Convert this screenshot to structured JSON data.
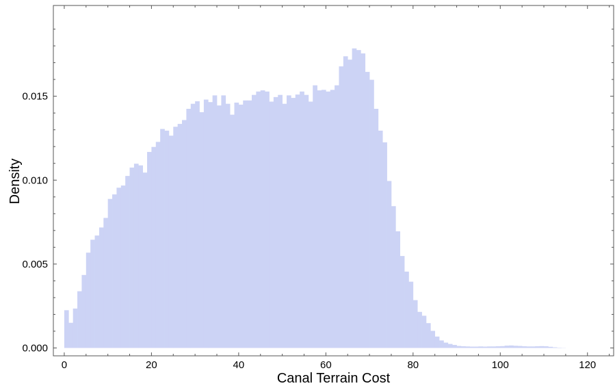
{
  "chart_data": {
    "type": "bar",
    "xlabel": "Canal Terrain Cost",
    "ylabel": "Density",
    "xlim": [
      -2.5,
      126
    ],
    "ylim": [
      0,
      0.02
    ],
    "x_ticks": [
      0,
      20,
      40,
      60,
      80,
      100,
      120
    ],
    "x_tick_labels": [
      "0",
      "20",
      "40",
      "60",
      "80",
      "100",
      "120"
    ],
    "y_ticks": [
      0,
      0.005,
      0.01,
      0.015
    ],
    "y_tick_labels": [
      "0.000",
      "0.005",
      "0.010",
      "0.015"
    ],
    "bin_width": 1,
    "bin_start": 0,
    "values": [
      0.00225,
      0.0015,
      0.00235,
      0.00338,
      0.00435,
      0.00568,
      0.00645,
      0.0067,
      0.00718,
      0.00775,
      0.00888,
      0.00915,
      0.00955,
      0.00968,
      0.01025,
      0.01075,
      0.01098,
      0.01088,
      0.01045,
      0.01168,
      0.01198,
      0.01228,
      0.01305,
      0.01295,
      0.01265,
      0.01318,
      0.01335,
      0.01358,
      0.01425,
      0.01455,
      0.0147,
      0.01405,
      0.0148,
      0.01465,
      0.01505,
      0.01445,
      0.01505,
      0.01455,
      0.0139,
      0.01462,
      0.0145,
      0.01475,
      0.01475,
      0.01508,
      0.01528,
      0.01535,
      0.01528,
      0.01468,
      0.01495,
      0.01508,
      0.01455,
      0.01505,
      0.0149,
      0.0151,
      0.01528,
      0.01508,
      0.01468,
      0.01565,
      0.01535,
      0.01538,
      0.01528,
      0.01538,
      0.01565,
      0.01678,
      0.01738,
      0.01718,
      0.01785,
      0.01775,
      0.01755,
      0.01645,
      0.01598,
      0.01425,
      0.01295,
      0.01225,
      0.00995,
      0.00845,
      0.00695,
      0.00548,
      0.00455,
      0.00395,
      0.00285,
      0.00215,
      0.00192,
      0.00148,
      0.00102,
      0.00068,
      0.00045,
      0.00032,
      0.00024,
      0.00018,
      0.00012,
      0.0001,
      9e-05,
      8e-05,
      8e-05,
      9e-05,
      8e-05,
      9e-05,
      9e-05,
      0.0001,
      0.00011,
      0.00014,
      0.00015,
      0.00013,
      0.00012,
      0.0001,
      9e-05,
      9e-05,
      0.0001,
      0.00011,
      0.0001,
      7e-05,
      4e-05,
      2e-05,
      1e-05
    ],
    "fill_color": "#ccd3f5",
    "grid": false
  }
}
